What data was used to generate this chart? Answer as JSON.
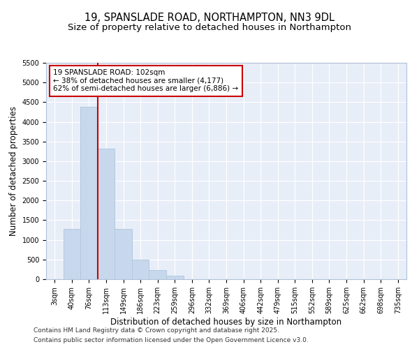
{
  "title_line1": "19, SPANSLADE ROAD, NORTHAMPTON, NN3 9DL",
  "title_line2": "Size of property relative to detached houses in Northampton",
  "xlabel": "Distribution of detached houses by size in Northampton",
  "ylabel": "Number of detached properties",
  "categories": [
    "3sqm",
    "40sqm",
    "76sqm",
    "113sqm",
    "149sqm",
    "186sqm",
    "223sqm",
    "259sqm",
    "296sqm",
    "332sqm",
    "369sqm",
    "406sqm",
    "442sqm",
    "479sqm",
    "515sqm",
    "552sqm",
    "589sqm",
    "625sqm",
    "662sqm",
    "698sqm",
    "735sqm"
  ],
  "values": [
    0,
    1270,
    4380,
    3310,
    1280,
    500,
    230,
    90,
    0,
    0,
    0,
    0,
    0,
    0,
    0,
    0,
    0,
    0,
    0,
    0,
    0
  ],
  "bar_color": "#c8d8ec",
  "bar_edge_color": "#b0c8e0",
  "vline_color": "#cc0000",
  "vline_x": 2.5,
  "annotation_text": "19 SPANSLADE ROAD: 102sqm\n← 38% of detached houses are smaller (4,177)\n62% of semi-detached houses are larger (6,886) →",
  "annotation_box_edgecolor": "#cc0000",
  "ylim": [
    0,
    5500
  ],
  "yticks": [
    0,
    500,
    1000,
    1500,
    2000,
    2500,
    3000,
    3500,
    4000,
    4500,
    5000,
    5500
  ],
  "bg_color": "#e8eef8",
  "grid_color": "#ffffff",
  "footer_line1": "Contains HM Land Registry data © Crown copyright and database right 2025.",
  "footer_line2": "Contains public sector information licensed under the Open Government Licence v3.0.",
  "title_fontsize": 10.5,
  "subtitle_fontsize": 9.5,
  "tick_fontsize": 7,
  "label_fontsize": 8.5,
  "annot_fontsize": 7.5,
  "footer_fontsize": 6.5
}
